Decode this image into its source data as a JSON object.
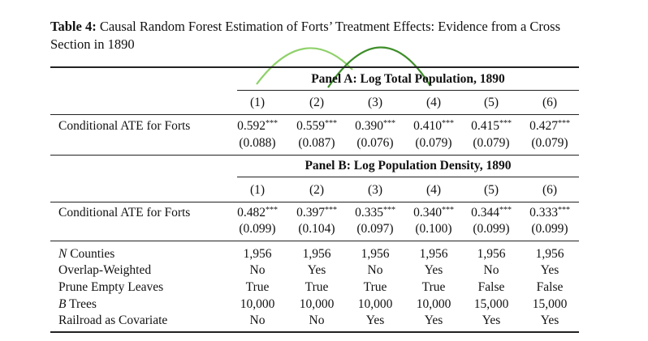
{
  "caption": {
    "label": "Table 4:",
    "text": "Causal Random Forest Estimation of Forts’ Treatment Effects: Evidence from a Cross Section in 1890"
  },
  "panel_a": {
    "title": "Panel A: Log Total Population, 1890",
    "columns": [
      "(1)",
      "(2)",
      "(3)",
      "(4)",
      "(5)",
      "(6)"
    ],
    "row_label": "Conditional ATE for Forts",
    "estimates": [
      "0.592",
      "0.559",
      "0.390",
      "0.410",
      "0.415",
      "0.427"
    ],
    "stars": [
      "***",
      "***",
      "***",
      "***",
      "***",
      "***"
    ],
    "std_errors": [
      "(0.088)",
      "(0.087)",
      "(0.076)",
      "(0.079)",
      "(0.079)",
      "(0.079)"
    ]
  },
  "panel_b": {
    "title": "Panel B: Log Population Density, 1890",
    "columns": [
      "(1)",
      "(2)",
      "(3)",
      "(4)",
      "(5)",
      "(6)"
    ],
    "row_label": "Conditional ATE for Forts",
    "estimates": [
      "0.482",
      "0.397",
      "0.335",
      "0.340",
      "0.344",
      "0.333"
    ],
    "stars": [
      "***",
      "***",
      "***",
      "***",
      "***",
      "***"
    ],
    "std_errors": [
      "(0.099)",
      "(0.104)",
      "(0.097)",
      "(0.100)",
      "(0.099)",
      "(0.099)"
    ]
  },
  "footer_rows": [
    {
      "label_italic": "N",
      "label": " Counties",
      "values": [
        "1,956",
        "1,956",
        "1,956",
        "1,956",
        "1,956",
        "1,956"
      ]
    },
    {
      "label_italic": "",
      "label": "Overlap-Weighted",
      "values": [
        "No",
        "Yes",
        "No",
        "Yes",
        "No",
        "Yes"
      ]
    },
    {
      "label_italic": "",
      "label": "Prune Empty Leaves",
      "values": [
        "True",
        "True",
        "True",
        "True",
        "False",
        "False"
      ]
    },
    {
      "label_italic": "B",
      "label": " Trees",
      "values": [
        "10,000",
        "10,000",
        "10,000",
        "10,000",
        "15,000",
        "15,000"
      ]
    },
    {
      "label_italic": "",
      "label": "Railroad as Covariate",
      "values": [
        "No",
        "No",
        "Yes",
        "Yes",
        "Yes",
        "Yes"
      ]
    }
  ],
  "colors": {
    "arc_light": "#8fd16a",
    "arc_dark": "#3e8e2a"
  }
}
